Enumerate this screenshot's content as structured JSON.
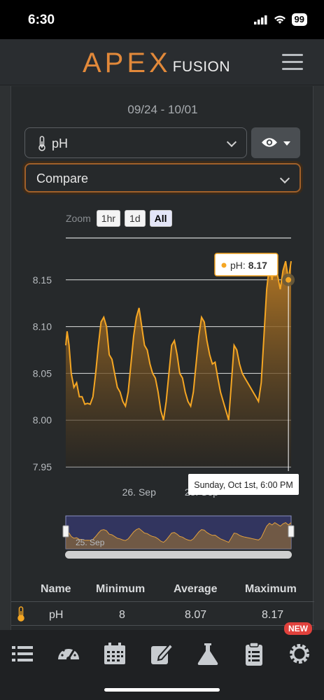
{
  "status_bar": {
    "time": "6:30",
    "battery": "99"
  },
  "header": {
    "logo_primary": "APEX",
    "logo_secondary": "FUSION"
  },
  "date_range": "09/24 - 10/01",
  "probe_select": {
    "value": "pH"
  },
  "compare_select": {
    "value": "Compare"
  },
  "zoom": {
    "label": "Zoom",
    "options": [
      "1hr",
      "1d",
      "All"
    ],
    "active": "All"
  },
  "tooltip": {
    "series": "pH: ",
    "value": "8.17",
    "timestamp": "Sunday, Oct 1st, 6:00 PM"
  },
  "navigator": {
    "label": "25. Sep"
  },
  "chart_data": {
    "type": "area",
    "title": "",
    "xlabel": "",
    "ylabel": "",
    "yticks": [
      "7.95",
      "8.00",
      "8.05",
      "8.10",
      "8.15"
    ],
    "xticks": [
      "26. Sep",
      "28. Sep"
    ],
    "ylim": [
      7.95,
      8.2
    ],
    "xlim_days": "Sep 24 - Oct 1",
    "series": [
      {
        "color": "#f5a623",
        "points": [
          [
            0,
            8.08
          ],
          [
            0.5,
            8.095
          ],
          [
            1.2,
            8.08
          ],
          [
            2,
            8.05
          ],
          [
            3,
            8.035
          ],
          [
            4,
            8.04
          ],
          [
            5,
            8.025
          ],
          [
            6,
            8.025
          ],
          [
            7,
            8.017
          ],
          [
            8,
            8.018
          ],
          [
            9,
            8.017
          ],
          [
            10,
            8.025
          ],
          [
            11,
            8.05
          ],
          [
            12,
            8.08
          ],
          [
            13,
            8.105
          ],
          [
            14,
            8.11
          ],
          [
            15,
            8.1
          ],
          [
            16,
            8.07
          ],
          [
            17,
            8.065
          ],
          [
            18,
            8.05
          ],
          [
            19,
            8.035
          ],
          [
            20,
            8.03
          ],
          [
            21,
            8.02
          ],
          [
            22,
            8.015
          ],
          [
            23,
            8.03
          ],
          [
            24,
            8.06
          ],
          [
            25,
            8.09
          ],
          [
            26,
            8.11
          ],
          [
            27,
            8.12
          ],
          [
            28,
            8.1
          ],
          [
            29,
            8.08
          ],
          [
            30,
            8.075
          ],
          [
            31,
            8.06
          ],
          [
            32,
            8.05
          ],
          [
            33,
            8.045
          ],
          [
            34,
            8.03
          ],
          [
            35,
            8.01
          ],
          [
            36,
            8.0
          ],
          [
            37,
            8.02
          ],
          [
            38,
            8.05
          ],
          [
            39,
            8.08
          ],
          [
            40,
            8.085
          ],
          [
            41,
            8.07
          ],
          [
            42,
            8.05
          ],
          [
            43,
            8.045
          ],
          [
            44,
            8.03
          ],
          [
            45,
            8.02
          ],
          [
            46,
            8.015
          ],
          [
            47,
            8.03
          ],
          [
            48,
            8.06
          ],
          [
            49,
            8.09
          ],
          [
            50,
            8.11
          ],
          [
            51,
            8.105
          ],
          [
            52,
            8.085
          ],
          [
            53,
            8.07
          ],
          [
            54,
            8.06
          ],
          [
            55,
            8.062
          ],
          [
            56,
            8.045
          ],
          [
            57,
            8.03
          ],
          [
            58,
            8.02
          ],
          [
            59,
            8.01
          ],
          [
            60,
            8.0
          ],
          [
            61,
            8.04
          ],
          [
            62,
            8.08
          ],
          [
            63,
            8.075
          ],
          [
            64,
            8.06
          ],
          [
            65,
            8.05
          ],
          [
            66,
            8.045
          ],
          [
            67,
            8.04
          ],
          [
            68,
            8.035
          ],
          [
            69,
            8.03
          ],
          [
            70,
            8.025
          ],
          [
            71,
            8.02
          ],
          [
            72,
            8.04
          ],
          [
            73,
            8.09
          ],
          [
            74,
            8.14
          ],
          [
            75,
            8.165
          ],
          [
            76,
            8.15
          ],
          [
            77,
            8.17
          ],
          [
            78,
            8.155
          ],
          [
            79,
            8.14
          ],
          [
            80,
            8.16
          ],
          [
            81,
            8.17
          ],
          [
            82,
            8.15
          ],
          [
            83,
            8.17
          ]
        ]
      }
    ],
    "hover_point": {
      "index": 83,
      "value": 8.17
    }
  },
  "stats": {
    "columns": [
      "Name",
      "Minimum",
      "Average",
      "Maximum"
    ],
    "rows": [
      {
        "name": "pH",
        "minimum": "8",
        "average": "8.07",
        "maximum": "8.17"
      }
    ]
  },
  "tabbar": {
    "badge": "NEW",
    "tabs": [
      "list",
      "dashboard",
      "calendar",
      "edit",
      "flask",
      "clipboard",
      "settings"
    ]
  }
}
